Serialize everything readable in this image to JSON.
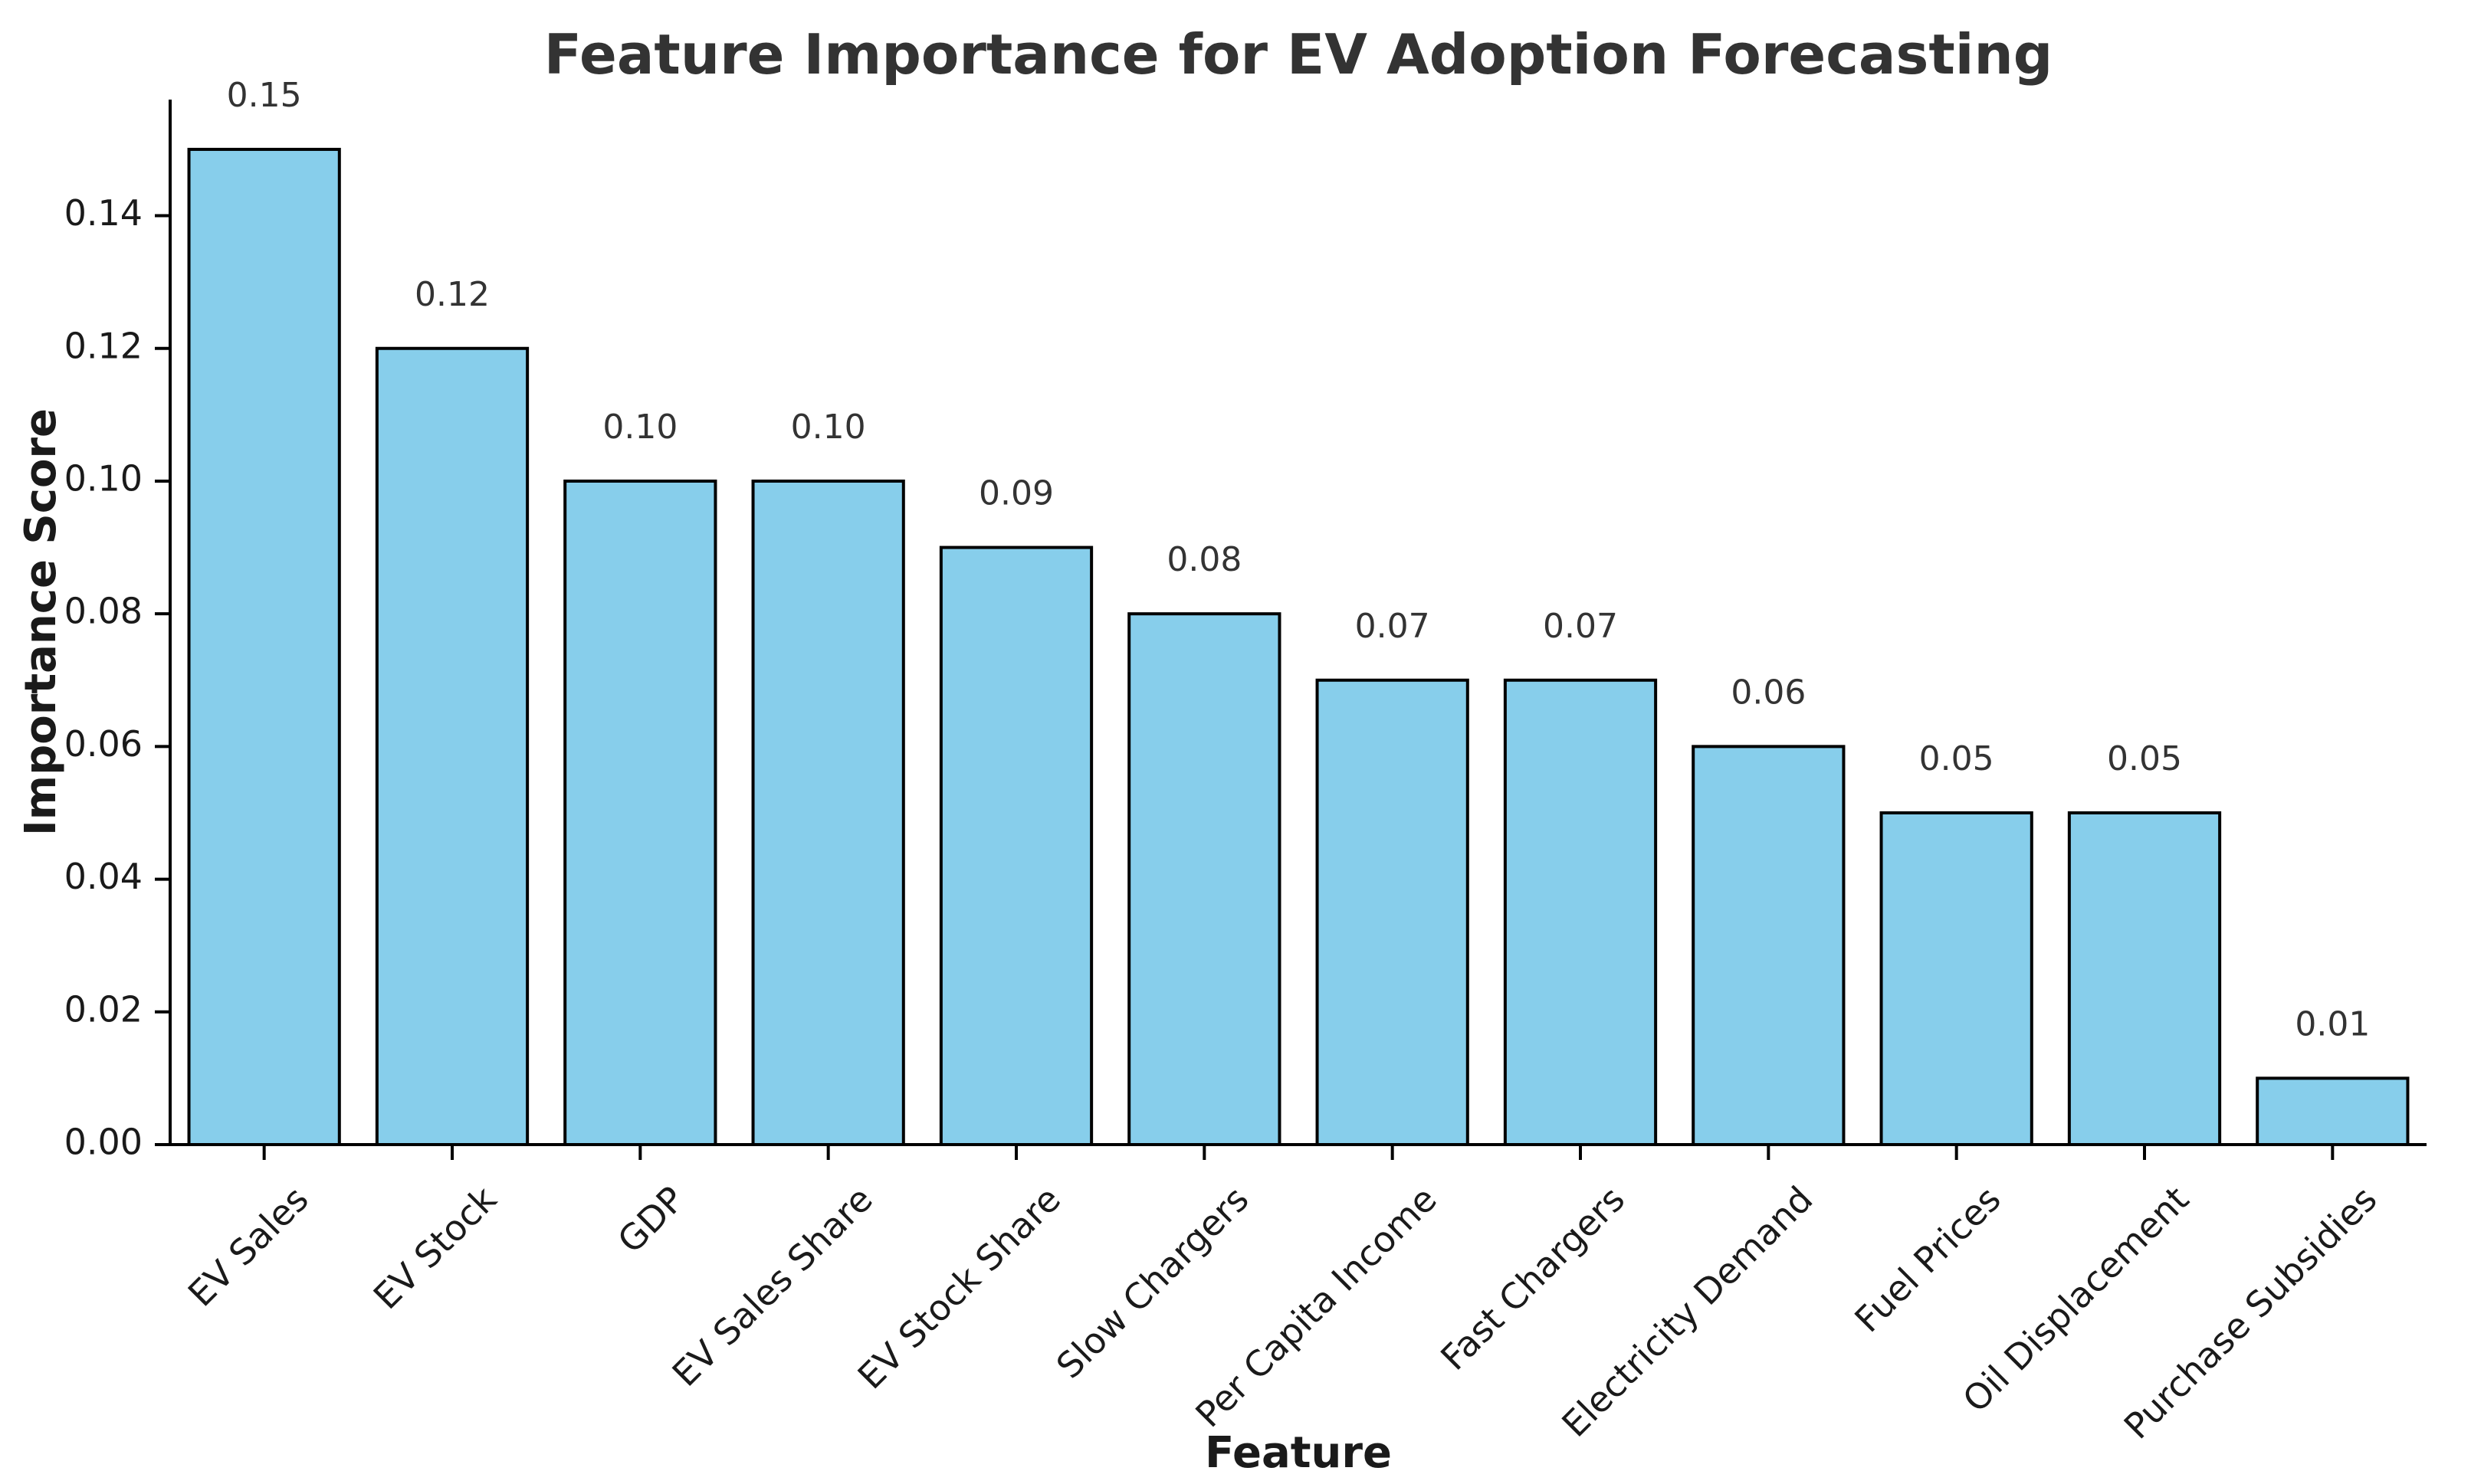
{
  "chart_data": {
    "type": "bar",
    "title": "Feature Importance for EV Adoption Forecasting",
    "xlabel": "Feature",
    "ylabel": "Importance Score",
    "categories": [
      "EV Sales",
      "EV Stock",
      "GDP",
      "EV Sales Share",
      "EV Stock Share",
      "Slow Chargers",
      "Per Capita Income",
      "Fast Chargers",
      "Electricity Demand",
      "Fuel Prices",
      "Oil Displacement",
      "Purchase Subsidies"
    ],
    "values": [
      0.15,
      0.12,
      0.1,
      0.1,
      0.09,
      0.08,
      0.07,
      0.07,
      0.06,
      0.05,
      0.05,
      0.01
    ],
    "data_labels": [
      "0.15",
      "0.12",
      "0.10",
      "0.10",
      "0.09",
      "0.08",
      "0.07",
      "0.07",
      "0.06",
      "0.05",
      "0.05",
      "0.01"
    ],
    "yticks": [
      0.0,
      0.02,
      0.04,
      0.06,
      0.08,
      0.1,
      0.12,
      0.14
    ],
    "ytick_labels": [
      "0.00",
      "0.02",
      "0.04",
      "0.06",
      "0.08",
      "0.10",
      "0.12",
      "0.14"
    ],
    "ylim": [
      0,
      0.1575
    ],
    "grid": false,
    "legend": false,
    "colors": {
      "bar_fill": "#87CEEB",
      "bar_edge": "#000000",
      "axis": "#000000",
      "title": "#333333",
      "label": "#1a1a1a"
    }
  }
}
